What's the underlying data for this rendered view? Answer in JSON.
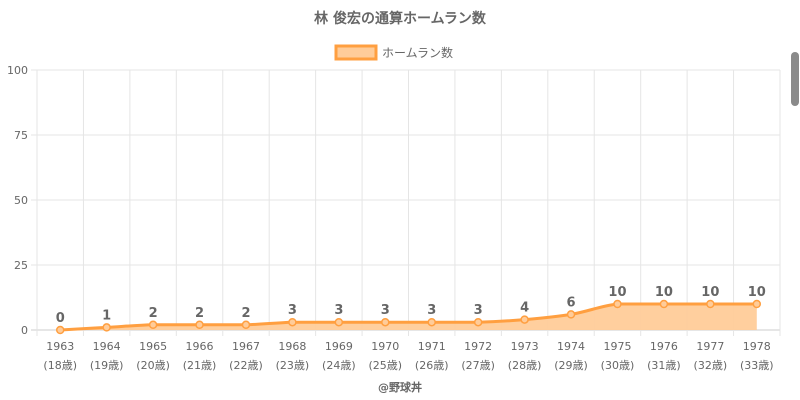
{
  "chart_data": {
    "type": "area",
    "title": "林 俊宏の通算ホームラン数",
    "categories": [
      "1963",
      "1964",
      "1965",
      "1966",
      "1967",
      "1968",
      "1969",
      "1970",
      "1971",
      "1972",
      "1973",
      "1974",
      "1975",
      "1976",
      "1977",
      "1978"
    ],
    "age_labels": [
      "(18歳)",
      "(19歳)",
      "(20歳)",
      "(21歳)",
      "(22歳)",
      "(23歳)",
      "(24歳)",
      "(25歳)",
      "(26歳)",
      "(27歳)",
      "(28歳)",
      "(29歳)",
      "(30歳)",
      "(31歳)",
      "(32歳)",
      "(33歳)"
    ],
    "series": [
      {
        "name": "ホームラン数",
        "values": [
          0,
          1,
          2,
          2,
          2,
          3,
          3,
          3,
          3,
          3,
          4,
          6,
          10,
          10,
          10,
          10
        ]
      }
    ],
    "ylim": [
      0,
      100
    ],
    "yticks": [
      0,
      25,
      50,
      75,
      100
    ],
    "grid": true,
    "legend_position": "top",
    "colors": {
      "line": "#ff9f40",
      "fill": "#ffcc99",
      "grid": "#e5e5e5",
      "text": "#666666"
    }
  },
  "credit": "@野球丼"
}
